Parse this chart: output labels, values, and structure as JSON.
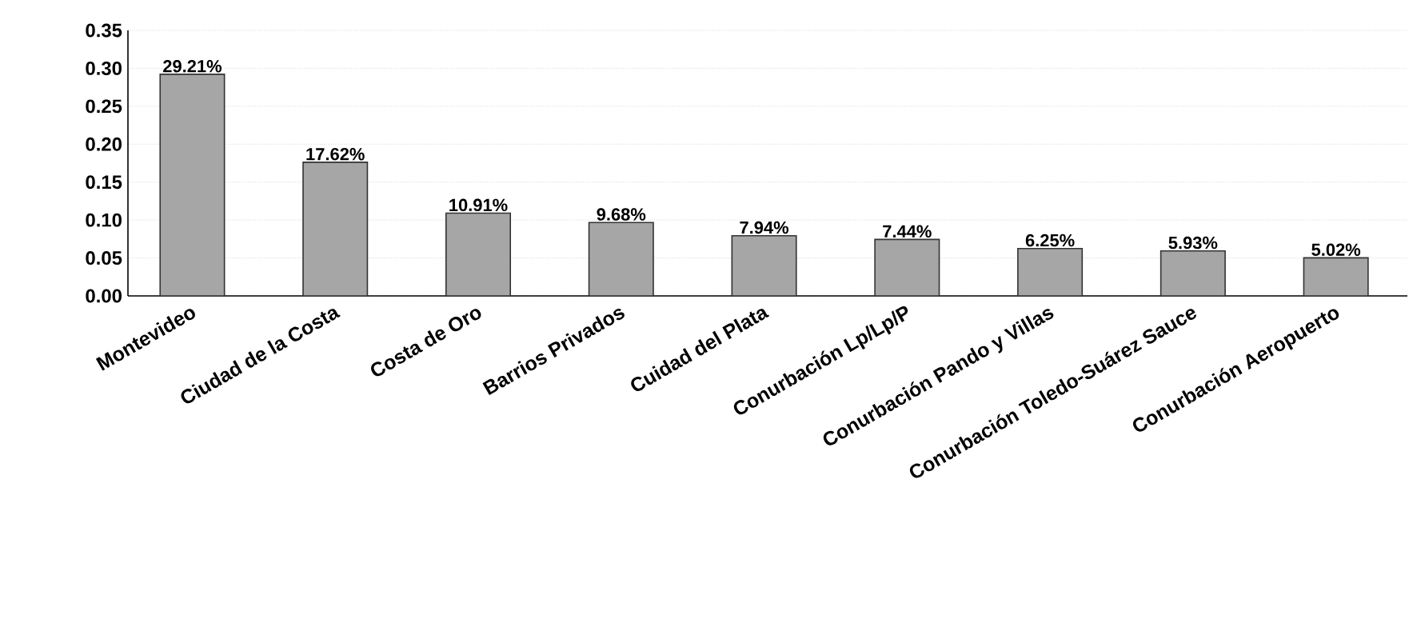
{
  "chart_data": {
    "type": "bar",
    "categories": [
      "Montevideo",
      "Ciudad de la Costa",
      "Costa de Oro",
      "Barrios Privados",
      "Cuidad del Plata",
      "Conurbación Lp/Lp/P",
      "Conurbación Pando y Villas",
      "Conurbación Toledo-Suárez Sauce",
      "Conurbación Aeropuerto"
    ],
    "values": [
      0.2921,
      0.1762,
      0.1091,
      0.0968,
      0.0794,
      0.0744,
      0.0625,
      0.0593,
      0.0502
    ],
    "value_labels": [
      "29.21%",
      "17.62%",
      "10.91%",
      "9.68%",
      "7.94%",
      "7.44%",
      "6.25%",
      "5.93%",
      "5.02%"
    ],
    "color": "#a6a6a6",
    "ylim": [
      0,
      0.35
    ],
    "yticks": [
      {
        "value": 0,
        "label": "0.00"
      },
      {
        "value": 0.05,
        "label": "0.05"
      },
      {
        "value": 0.1,
        "label": "0.10"
      },
      {
        "value": 0.15,
        "label": "0.15"
      },
      {
        "value": 0.2,
        "label": "0.20"
      },
      {
        "value": 0.25,
        "label": "0.25"
      },
      {
        "value": 0.3,
        "label": "0.30"
      },
      {
        "value": 0.35,
        "label": "0.35"
      }
    ],
    "grid": "y"
  }
}
